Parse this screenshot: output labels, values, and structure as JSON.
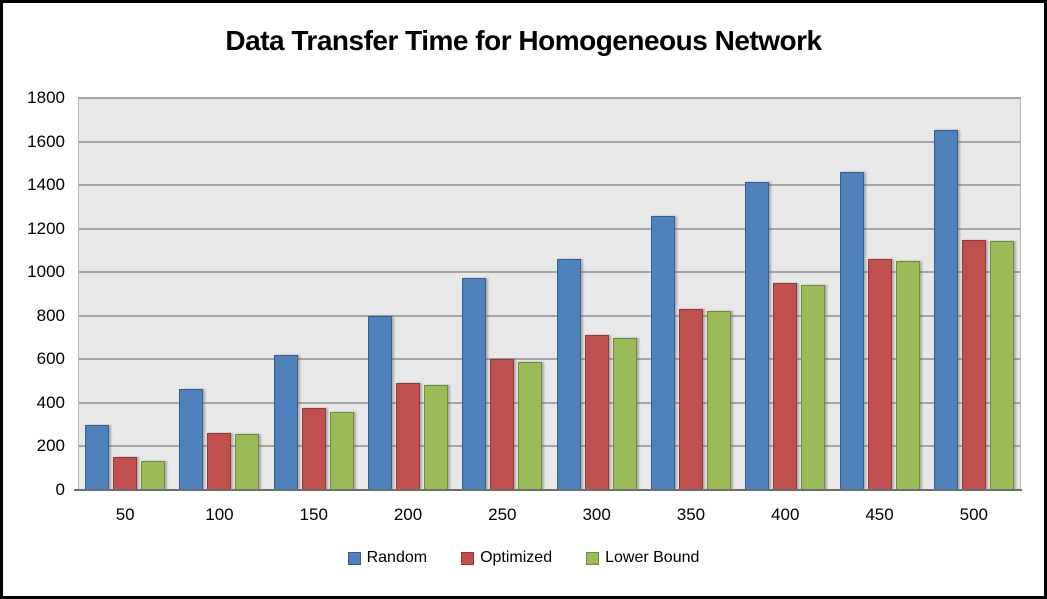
{
  "window": {
    "background": "#FFFFFF",
    "border_color": "#000000"
  },
  "chart_data": {
    "type": "bar",
    "title": "Data Transfer Time for Homogeneous Network",
    "xlabel": "",
    "ylabel": "",
    "categories": [
      "50",
      "100",
      "150",
      "200",
      "250",
      "300",
      "350",
      "400",
      "450",
      "500"
    ],
    "series": [
      {
        "name": "Random",
        "color": "#4F81BD",
        "border_color": "#385D8A",
        "values": [
          300,
          465,
          620,
          800,
          975,
          1060,
          1260,
          1415,
          1460,
          1655
        ]
      },
      {
        "name": "Optimized",
        "color": "#C0504D",
        "border_color": "#953735",
        "values": [
          150,
          260,
          375,
          490,
          600,
          710,
          830,
          950,
          1060,
          1150
        ]
      },
      {
        "name": "Lower Bound",
        "color": "#9BBB59",
        "border_color": "#71893F",
        "values": [
          135,
          255,
          360,
          480,
          590,
          700,
          820,
          940,
          1050,
          1145
        ]
      }
    ],
    "ylim": [
      0,
      1800
    ],
    "ytick_step": 200,
    "grid": true,
    "legend_position": "bottom",
    "plot_bg": "#E8E8E8",
    "gridline_color": "#A6A6A6",
    "plot_side_color": "#B8B8B8",
    "axis_line_color": "#6E6E6E",
    "text_color": "#000000"
  }
}
